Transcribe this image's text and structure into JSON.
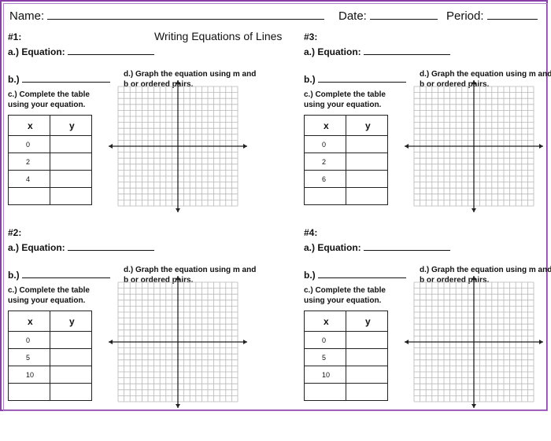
{
  "header": {
    "name_label": "Name:",
    "date_label": "Date:",
    "period_label": "Period:"
  },
  "title": "Writing Equations of Lines",
  "instructions": {
    "equation": "a.) Equation:",
    "slope": "b.)",
    "table": "c.) Complete the table using your equation.",
    "graph": "d.) Graph the equation using m and b or ordered pairs."
  },
  "table_headers": {
    "x": "x",
    "y": "y"
  },
  "problems": [
    {
      "label": "#1:",
      "x_values": [
        "0",
        "2",
        "4",
        ""
      ]
    },
    {
      "label": "#3:",
      "x_values": [
        "0",
        "2",
        "6",
        ""
      ]
    },
    {
      "label": "#2:",
      "x_values": [
        "0",
        "5",
        "10",
        ""
      ]
    },
    {
      "label": "#4:",
      "x_values": [
        "0",
        "5",
        "10",
        ""
      ]
    }
  ],
  "colors": {
    "border": "#8a3fa8",
    "grid": "#b8b8b8",
    "axis": "#222222"
  }
}
